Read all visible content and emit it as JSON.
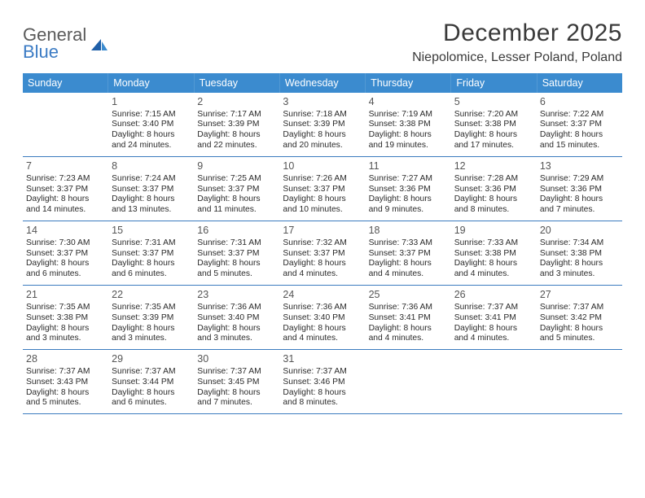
{
  "brand": {
    "general": "General",
    "blue": "Blue"
  },
  "title": "December 2025",
  "location": "Niepolomice, Lesser Poland, Poland",
  "colors": {
    "header_bg": "#3b8bcf",
    "row_border": "#3b7bbf",
    "text": "#2a2a2a",
    "title_text": "#3a3a3a",
    "logo_gray": "#5a5a5a",
    "logo_blue": "#3b7bc4",
    "page_bg": "#ffffff"
  },
  "typography": {
    "title_fontsize_pt": 22,
    "location_fontsize_pt": 12,
    "dow_fontsize_pt": 9.5,
    "daynum_fontsize_pt": 9.5,
    "body_fontsize_pt": 7.7,
    "font_family": "Arial"
  },
  "dow": [
    "Sunday",
    "Monday",
    "Tuesday",
    "Wednesday",
    "Thursday",
    "Friday",
    "Saturday"
  ],
  "weeks": [
    [
      null,
      {
        "n": "1",
        "sr": "Sunrise: 7:15 AM",
        "ss": "Sunset: 3:40 PM",
        "dl1": "Daylight: 8 hours",
        "dl2": "and 24 minutes."
      },
      {
        "n": "2",
        "sr": "Sunrise: 7:17 AM",
        "ss": "Sunset: 3:39 PM",
        "dl1": "Daylight: 8 hours",
        "dl2": "and 22 minutes."
      },
      {
        "n": "3",
        "sr": "Sunrise: 7:18 AM",
        "ss": "Sunset: 3:39 PM",
        "dl1": "Daylight: 8 hours",
        "dl2": "and 20 minutes."
      },
      {
        "n": "4",
        "sr": "Sunrise: 7:19 AM",
        "ss": "Sunset: 3:38 PM",
        "dl1": "Daylight: 8 hours",
        "dl2": "and 19 minutes."
      },
      {
        "n": "5",
        "sr": "Sunrise: 7:20 AM",
        "ss": "Sunset: 3:38 PM",
        "dl1": "Daylight: 8 hours",
        "dl2": "and 17 minutes."
      },
      {
        "n": "6",
        "sr": "Sunrise: 7:22 AM",
        "ss": "Sunset: 3:37 PM",
        "dl1": "Daylight: 8 hours",
        "dl2": "and 15 minutes."
      }
    ],
    [
      {
        "n": "7",
        "sr": "Sunrise: 7:23 AM",
        "ss": "Sunset: 3:37 PM",
        "dl1": "Daylight: 8 hours",
        "dl2": "and 14 minutes."
      },
      {
        "n": "8",
        "sr": "Sunrise: 7:24 AM",
        "ss": "Sunset: 3:37 PM",
        "dl1": "Daylight: 8 hours",
        "dl2": "and 13 minutes."
      },
      {
        "n": "9",
        "sr": "Sunrise: 7:25 AM",
        "ss": "Sunset: 3:37 PM",
        "dl1": "Daylight: 8 hours",
        "dl2": "and 11 minutes."
      },
      {
        "n": "10",
        "sr": "Sunrise: 7:26 AM",
        "ss": "Sunset: 3:37 PM",
        "dl1": "Daylight: 8 hours",
        "dl2": "and 10 minutes."
      },
      {
        "n": "11",
        "sr": "Sunrise: 7:27 AM",
        "ss": "Sunset: 3:36 PM",
        "dl1": "Daylight: 8 hours",
        "dl2": "and 9 minutes."
      },
      {
        "n": "12",
        "sr": "Sunrise: 7:28 AM",
        "ss": "Sunset: 3:36 PM",
        "dl1": "Daylight: 8 hours",
        "dl2": "and 8 minutes."
      },
      {
        "n": "13",
        "sr": "Sunrise: 7:29 AM",
        "ss": "Sunset: 3:36 PM",
        "dl1": "Daylight: 8 hours",
        "dl2": "and 7 minutes."
      }
    ],
    [
      {
        "n": "14",
        "sr": "Sunrise: 7:30 AM",
        "ss": "Sunset: 3:37 PM",
        "dl1": "Daylight: 8 hours",
        "dl2": "and 6 minutes."
      },
      {
        "n": "15",
        "sr": "Sunrise: 7:31 AM",
        "ss": "Sunset: 3:37 PM",
        "dl1": "Daylight: 8 hours",
        "dl2": "and 6 minutes."
      },
      {
        "n": "16",
        "sr": "Sunrise: 7:31 AM",
        "ss": "Sunset: 3:37 PM",
        "dl1": "Daylight: 8 hours",
        "dl2": "and 5 minutes."
      },
      {
        "n": "17",
        "sr": "Sunrise: 7:32 AM",
        "ss": "Sunset: 3:37 PM",
        "dl1": "Daylight: 8 hours",
        "dl2": "and 4 minutes."
      },
      {
        "n": "18",
        "sr": "Sunrise: 7:33 AM",
        "ss": "Sunset: 3:37 PM",
        "dl1": "Daylight: 8 hours",
        "dl2": "and 4 minutes."
      },
      {
        "n": "19",
        "sr": "Sunrise: 7:33 AM",
        "ss": "Sunset: 3:38 PM",
        "dl1": "Daylight: 8 hours",
        "dl2": "and 4 minutes."
      },
      {
        "n": "20",
        "sr": "Sunrise: 7:34 AM",
        "ss": "Sunset: 3:38 PM",
        "dl1": "Daylight: 8 hours",
        "dl2": "and 3 minutes."
      }
    ],
    [
      {
        "n": "21",
        "sr": "Sunrise: 7:35 AM",
        "ss": "Sunset: 3:38 PM",
        "dl1": "Daylight: 8 hours",
        "dl2": "and 3 minutes."
      },
      {
        "n": "22",
        "sr": "Sunrise: 7:35 AM",
        "ss": "Sunset: 3:39 PM",
        "dl1": "Daylight: 8 hours",
        "dl2": "and 3 minutes."
      },
      {
        "n": "23",
        "sr": "Sunrise: 7:36 AM",
        "ss": "Sunset: 3:40 PM",
        "dl1": "Daylight: 8 hours",
        "dl2": "and 3 minutes."
      },
      {
        "n": "24",
        "sr": "Sunrise: 7:36 AM",
        "ss": "Sunset: 3:40 PM",
        "dl1": "Daylight: 8 hours",
        "dl2": "and 4 minutes."
      },
      {
        "n": "25",
        "sr": "Sunrise: 7:36 AM",
        "ss": "Sunset: 3:41 PM",
        "dl1": "Daylight: 8 hours",
        "dl2": "and 4 minutes."
      },
      {
        "n": "26",
        "sr": "Sunrise: 7:37 AM",
        "ss": "Sunset: 3:41 PM",
        "dl1": "Daylight: 8 hours",
        "dl2": "and 4 minutes."
      },
      {
        "n": "27",
        "sr": "Sunrise: 7:37 AM",
        "ss": "Sunset: 3:42 PM",
        "dl1": "Daylight: 8 hours",
        "dl2": "and 5 minutes."
      }
    ],
    [
      {
        "n": "28",
        "sr": "Sunrise: 7:37 AM",
        "ss": "Sunset: 3:43 PM",
        "dl1": "Daylight: 8 hours",
        "dl2": "and 5 minutes."
      },
      {
        "n": "29",
        "sr": "Sunrise: 7:37 AM",
        "ss": "Sunset: 3:44 PM",
        "dl1": "Daylight: 8 hours",
        "dl2": "and 6 minutes."
      },
      {
        "n": "30",
        "sr": "Sunrise: 7:37 AM",
        "ss": "Sunset: 3:45 PM",
        "dl1": "Daylight: 8 hours",
        "dl2": "and 7 minutes."
      },
      {
        "n": "31",
        "sr": "Sunrise: 7:37 AM",
        "ss": "Sunset: 3:46 PM",
        "dl1": "Daylight: 8 hours",
        "dl2": "and 8 minutes."
      },
      null,
      null,
      null
    ]
  ]
}
